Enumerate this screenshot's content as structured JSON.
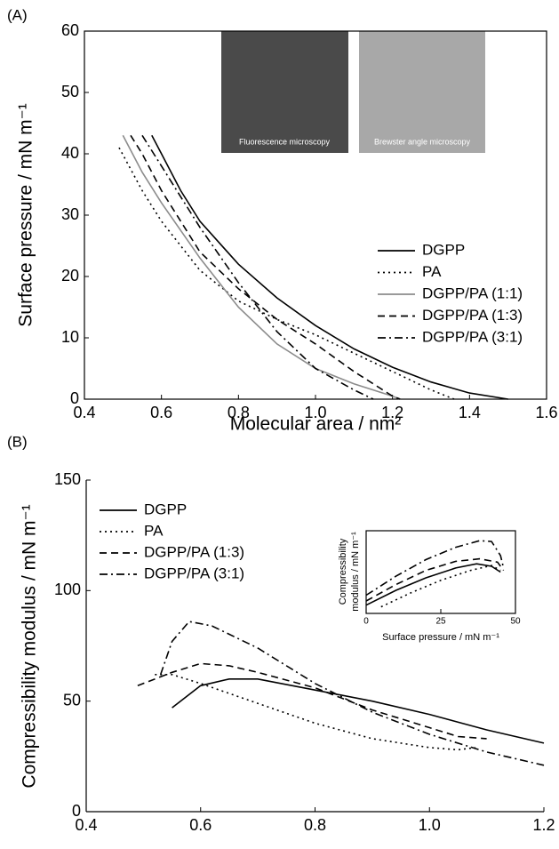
{
  "chart_data": [
    {
      "type": "line",
      "panel": "(A)",
      "xlabel": "Molecular area / nm²",
      "ylabel": "Surface pressure / mN m⁻¹",
      "xlim": [
        0.4,
        1.6
      ],
      "ylim": [
        0,
        60
      ],
      "xticks": [
        0.4,
        0.6,
        0.8,
        {
          "value": 1,
          "label": "1.0"
        },
        1.2,
        1.4,
        1.6
      ],
      "yticks": [
        0,
        10,
        20,
        30,
        40,
        50,
        60
      ],
      "legend": "center right",
      "annotations": [
        "Fluorescence microscopy",
        "Brewster angle microscopy"
      ],
      "series": [
        {
          "name": "DGPP",
          "color": "#000000",
          "dash": "solid",
          "x": [
            0.575,
            0.6,
            0.65,
            0.7,
            0.8,
            0.9,
            1.0,
            1.1,
            1.2,
            1.3,
            1.4,
            1.5
          ],
          "values": [
            43,
            40,
            34,
            29,
            22,
            16.5,
            12,
            8.2,
            5.2,
            2.8,
            1,
            0
          ]
        },
        {
          "name": "PA",
          "color": "#000000",
          "dash": "dotted",
          "x": [
            0.49,
            0.55,
            0.6,
            0.7,
            0.8,
            0.9,
            1.0,
            1.1,
            1.2,
            1.3,
            1.36
          ],
          "values": [
            41,
            34,
            29,
            21,
            16,
            13,
            10.5,
            7.5,
            4.5,
            1.5,
            0
          ]
        },
        {
          "name": "DGPP/PA (1:1)",
          "color": "#8c8c8c",
          "dash": "solid",
          "x": [
            0.5,
            0.55,
            0.6,
            0.7,
            0.8,
            0.9,
            1.0,
            1.1,
            1.2,
            1.22
          ],
          "values": [
            43,
            37,
            32,
            23,
            15,
            9,
            5,
            2.5,
            0.5,
            0
          ]
        },
        {
          "name": "DGPP/PA (1:3)",
          "color": "#000000",
          "dash": "dashed",
          "x": [
            0.52,
            0.55,
            0.6,
            0.7,
            0.8,
            0.9,
            1.0,
            1.1,
            1.2,
            1.22
          ],
          "values": [
            43,
            40,
            34,
            24,
            18,
            13,
            9,
            4.5,
            0.5,
            0
          ]
        },
        {
          "name": "DGPP/PA (3:1)",
          "color": "#000000",
          "dash": "dashdot",
          "x": [
            0.55,
            0.6,
            0.65,
            0.7,
            0.8,
            0.9,
            1.0,
            1.1,
            1.15
          ],
          "values": [
            43,
            38,
            33,
            28,
            19,
            11,
            5,
            1.5,
            0
          ]
        }
      ]
    },
    {
      "type": "line",
      "panel": "(B)",
      "ylabel": "Compressibility modulus / mN m⁻¹",
      "xlim": [
        0.4,
        1.2
      ],
      "ylim": [
        0,
        150
      ],
      "xticks": [
        0.4,
        0.6,
        0.8,
        {
          "value": 1,
          "label": "1.0"
        },
        1.2
      ],
      "yticks": [
        0,
        50,
        100,
        150
      ],
      "legend": "upper left",
      "series": [
        {
          "name": "DGPP",
          "color": "#000000",
          "dash": "solid",
          "x": [
            0.55,
            0.6,
            0.65,
            0.7,
            0.8,
            0.9,
            1.0,
            1.1,
            1.2
          ],
          "values": [
            47,
            57,
            60,
            60,
            55,
            50,
            44,
            37,
            31
          ]
        },
        {
          "name": "PA",
          "color": "#000000",
          "dash": "dotted",
          "x": [
            0.52,
            0.55,
            0.6,
            0.7,
            0.8,
            0.9,
            1.0,
            1.05,
            1.08
          ],
          "values": [
            62,
            62,
            58,
            49,
            40,
            33,
            29,
            28,
            29
          ]
        },
        {
          "name": "DGPP/PA (1:3)",
          "color": "#000000",
          "dash": "dashed",
          "x": [
            0.49,
            0.55,
            0.6,
            0.65,
            0.7,
            0.8,
            0.9,
            1.0,
            1.05,
            1.1
          ],
          "values": [
            57,
            63,
            67,
            66,
            63,
            56,
            46,
            38,
            34,
            33
          ]
        },
        {
          "name": "DGPP/PA (3:1)",
          "color": "#000000",
          "dash": "dashdot",
          "x": [
            0.53,
            0.55,
            0.58,
            0.62,
            0.7,
            0.8,
            0.9,
            1.0,
            1.1,
            1.2
          ],
          "values": [
            62,
            77,
            86,
            84,
            74,
            58,
            45,
            35,
            27,
            21
          ]
        }
      ]
    },
    {
      "type": "line",
      "xlabel": "Surface pressure / mN m⁻¹",
      "ylabel": [
        "Compressibility",
        "modulus / mN m⁻¹"
      ],
      "xlim": [
        0,
        50
      ],
      "ylim": [
        0,
        100
      ],
      "xticks": [
        0,
        25,
        50
      ],
      "series": [
        {
          "color": "#000000",
          "dash": "solid",
          "x": [
            0,
            10,
            20,
            30,
            37,
            42,
            45
          ],
          "values": [
            10,
            28,
            43,
            55,
            60,
            57,
            50
          ]
        },
        {
          "color": "#000000",
          "dash": "dotted",
          "x": [
            5,
            15,
            25,
            35,
            42,
            45
          ],
          "values": [
            8,
            25,
            40,
            52,
            58,
            52
          ]
        },
        {
          "color": "#000000",
          "dash": "dashed",
          "x": [
            0,
            10,
            20,
            30,
            38,
            44,
            46
          ],
          "values": [
            15,
            35,
            52,
            63,
            66,
            62,
            52
          ]
        },
        {
          "color": "#000000",
          "dash": "dashdot",
          "x": [
            0,
            10,
            20,
            30,
            38,
            42,
            45,
            46
          ],
          "values": [
            22,
            45,
            65,
            80,
            88,
            87,
            70,
            55
          ]
        }
      ]
    }
  ]
}
